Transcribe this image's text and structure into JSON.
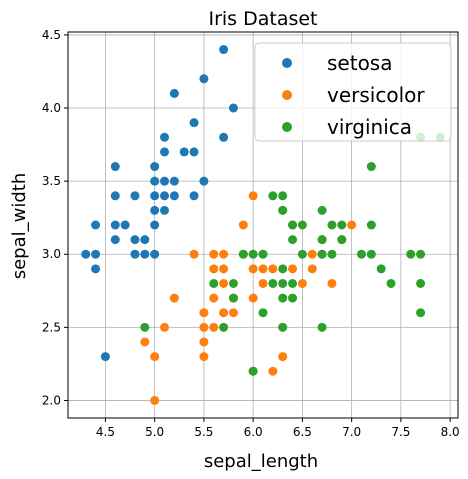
{
  "chart_data": {
    "type": "scatter",
    "title": "Iris Dataset",
    "xlabel": "sepal_length",
    "ylabel": "sepal_width",
    "xlim": [
      4.12,
      8.08
    ],
    "ylim": [
      1.88,
      4.52
    ],
    "xticks": [
      "4.5",
      "5.0",
      "5.5",
      "6.0",
      "6.5",
      "7.0",
      "7.5",
      "8.0"
    ],
    "yticks": [
      "2.0",
      "2.5",
      "3.0",
      "3.5",
      "4.0",
      "4.5"
    ],
    "grid": true,
    "legend_position": "top-right",
    "series": [
      {
        "name": "setosa",
        "color": "#1f77b4",
        "points": [
          [
            4.3,
            3.0
          ],
          [
            4.4,
            2.9
          ],
          [
            4.4,
            3.0
          ],
          [
            4.4,
            3.2
          ],
          [
            4.5,
            2.3
          ],
          [
            4.6,
            3.1
          ],
          [
            4.6,
            3.2
          ],
          [
            4.6,
            3.4
          ],
          [
            4.6,
            3.6
          ],
          [
            4.7,
            3.2
          ],
          [
            4.8,
            3.0
          ],
          [
            4.8,
            3.1
          ],
          [
            4.8,
            3.4
          ],
          [
            4.9,
            3.0
          ],
          [
            4.9,
            3.1
          ],
          [
            5.0,
            3.0
          ],
          [
            5.0,
            3.2
          ],
          [
            5.0,
            3.3
          ],
          [
            5.0,
            3.4
          ],
          [
            5.0,
            3.5
          ],
          [
            5.0,
            3.6
          ],
          [
            5.1,
            3.3
          ],
          [
            5.1,
            3.4
          ],
          [
            5.1,
            3.5
          ],
          [
            5.1,
            3.7
          ],
          [
            5.1,
            3.8
          ],
          [
            5.2,
            3.4
          ],
          [
            5.2,
            3.5
          ],
          [
            5.2,
            4.1
          ],
          [
            5.3,
            3.7
          ],
          [
            5.4,
            3.4
          ],
          [
            5.4,
            3.7
          ],
          [
            5.4,
            3.9
          ],
          [
            5.5,
            3.5
          ],
          [
            5.5,
            4.2
          ],
          [
            5.7,
            3.8
          ],
          [
            5.7,
            4.4
          ],
          [
            5.8,
            4.0
          ]
        ]
      },
      {
        "name": "versicolor",
        "color": "#ff7f0e",
        "points": [
          [
            4.9,
            2.4
          ],
          [
            5.0,
            2.0
          ],
          [
            5.0,
            2.3
          ],
          [
            5.1,
            2.5
          ],
          [
            5.2,
            2.7
          ],
          [
            5.4,
            3.0
          ],
          [
            5.5,
            2.3
          ],
          [
            5.5,
            2.4
          ],
          [
            5.5,
            2.5
          ],
          [
            5.5,
            2.6
          ],
          [
            5.6,
            2.5
          ],
          [
            5.6,
            2.7
          ],
          [
            5.6,
            2.9
          ],
          [
            5.6,
            3.0
          ],
          [
            5.7,
            2.6
          ],
          [
            5.7,
            2.8
          ],
          [
            5.7,
            2.9
          ],
          [
            5.7,
            3.0
          ],
          [
            5.8,
            2.6
          ],
          [
            5.8,
            2.7
          ],
          [
            5.9,
            3.0
          ],
          [
            5.9,
            3.2
          ],
          [
            6.0,
            2.2
          ],
          [
            6.0,
            2.7
          ],
          [
            6.0,
            2.9
          ],
          [
            6.0,
            3.4
          ],
          [
            6.1,
            2.8
          ],
          [
            6.1,
            2.9
          ],
          [
            6.1,
            3.0
          ],
          [
            6.2,
            2.2
          ],
          [
            6.2,
            2.9
          ],
          [
            6.3,
            2.3
          ],
          [
            6.3,
            2.5
          ],
          [
            6.3,
            3.3
          ],
          [
            6.4,
            2.9
          ],
          [
            6.4,
            3.2
          ],
          [
            6.5,
            2.8
          ],
          [
            6.6,
            2.9
          ],
          [
            6.6,
            3.0
          ],
          [
            6.7,
            3.0
          ],
          [
            6.7,
            3.1
          ],
          [
            6.8,
            2.8
          ],
          [
            6.9,
            3.1
          ],
          [
            7.0,
            3.2
          ]
        ]
      },
      {
        "name": "virginica",
        "color": "#2ca02c",
        "points": [
          [
            4.9,
            2.5
          ],
          [
            5.6,
            2.8
          ],
          [
            5.7,
            2.5
          ],
          [
            5.8,
            2.7
          ],
          [
            5.8,
            2.8
          ],
          [
            5.9,
            3.0
          ],
          [
            6.0,
            2.2
          ],
          [
            6.0,
            3.0
          ],
          [
            6.1,
            2.6
          ],
          [
            6.1,
            3.0
          ],
          [
            6.2,
            2.8
          ],
          [
            6.2,
            3.4
          ],
          [
            6.3,
            2.5
          ],
          [
            6.3,
            2.7
          ],
          [
            6.3,
            2.8
          ],
          [
            6.3,
            2.9
          ],
          [
            6.3,
            3.3
          ],
          [
            6.3,
            3.4
          ],
          [
            6.4,
            2.7
          ],
          [
            6.4,
            2.8
          ],
          [
            6.4,
            3.1
          ],
          [
            6.4,
            3.2
          ],
          [
            6.5,
            3.0
          ],
          [
            6.5,
            3.2
          ],
          [
            6.7,
            2.5
          ],
          [
            6.7,
            3.0
          ],
          [
            6.7,
            3.1
          ],
          [
            6.7,
            3.3
          ],
          [
            6.8,
            3.0
          ],
          [
            6.8,
            3.2
          ],
          [
            6.9,
            3.1
          ],
          [
            6.9,
            3.2
          ],
          [
            7.1,
            3.0
          ],
          [
            7.2,
            3.0
          ],
          [
            7.2,
            3.2
          ],
          [
            7.2,
            3.6
          ],
          [
            7.3,
            2.9
          ],
          [
            7.4,
            2.8
          ],
          [
            7.6,
            3.0
          ],
          [
            7.7,
            2.6
          ],
          [
            7.7,
            2.8
          ],
          [
            7.7,
            3.0
          ],
          [
            7.7,
            3.8
          ],
          [
            7.9,
            3.8
          ]
        ]
      }
    ]
  }
}
